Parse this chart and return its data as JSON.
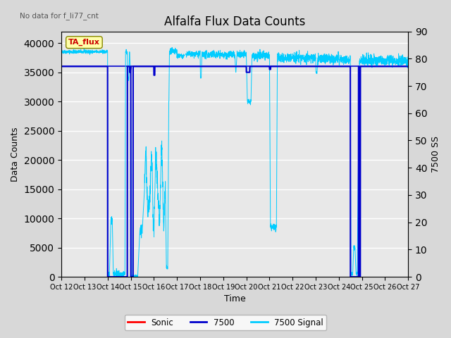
{
  "title": "Alfalfa Flux Data Counts",
  "no_data_label": "No data for f_li77_cnt",
  "xlabel": "Time",
  "ylabel_left": "Data Counts",
  "ylabel_right": "7500 SS",
  "annotation": "TA_flux",
  "x_tick_labels": [
    "Oct 12",
    "Oct 13",
    "Oct 14",
    "Oct 15",
    "Oct 16",
    "Oct 17",
    "Oct 18",
    "Oct 19",
    "Oct 20",
    "Oct 21",
    "Oct 22",
    "Oct 23",
    "Oct 24",
    "Oct 25",
    "Oct 26",
    "Oct 27"
  ],
  "ylim_left": [
    0,
    42000
  ],
  "ylim_right": [
    0,
    90
  ],
  "yticks_left": [
    0,
    5000,
    10000,
    15000,
    20000,
    25000,
    30000,
    35000,
    40000
  ],
  "yticks_right": [
    0,
    10,
    20,
    30,
    40,
    50,
    60,
    70,
    80,
    90
  ],
  "fig_bg_color": "#d8d8d8",
  "plot_bg_color": "#e8e8e8",
  "legend_entries": [
    "Sonic",
    "7500",
    "7500 Signal"
  ],
  "legend_colors": [
    "#ff0000",
    "#0000cc",
    "#00ccff"
  ],
  "sonic_color": "#ff0000",
  "line7500_color": "#0000cc",
  "signal_color": "#00ccff",
  "horizontal_line_value": 36000,
  "horizontal_line_color": "#0000cc",
  "annotation_bg": "#ffffaa",
  "annotation_edge": "#888800"
}
